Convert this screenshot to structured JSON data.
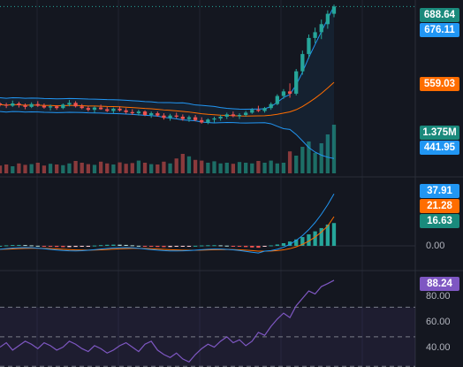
{
  "chart_data": [
    {
      "type": "candlestick",
      "title": "",
      "indicators": [
        "Bollinger Bands",
        "Volume"
      ],
      "price_ylim": [
        400,
        700
      ],
      "last_price": 688.64,
      "last_price_line": "dotted",
      "candles": [
        [
          520,
          522,
          515,
          518
        ],
        [
          518,
          521,
          512,
          516
        ],
        [
          516,
          525,
          514,
          520
        ],
        [
          520,
          523,
          513,
          517
        ],
        [
          517,
          520,
          510,
          514
        ],
        [
          514,
          522,
          512,
          519
        ],
        [
          519,
          524,
          514,
          516
        ],
        [
          516,
          520,
          511,
          513
        ],
        [
          513,
          518,
          508,
          515
        ],
        [
          515,
          517,
          509,
          512
        ],
        [
          512,
          520,
          510,
          518
        ],
        [
          518,
          526,
          515,
          521
        ],
        [
          521,
          524,
          513,
          515
        ],
        [
          515,
          519,
          510,
          512
        ],
        [
          512,
          516,
          506,
          509
        ],
        [
          509,
          515,
          504,
          513
        ],
        [
          513,
          518,
          509,
          510
        ],
        [
          510,
          514,
          505,
          507
        ],
        [
          507,
          513,
          503,
          511
        ],
        [
          511,
          515,
          506,
          508
        ],
        [
          508,
          512,
          502,
          505
        ],
        [
          505,
          510,
          500,
          503
        ],
        [
          503,
          509,
          499,
          506
        ],
        [
          506,
          508,
          498,
          500
        ],
        [
          500,
          506,
          495,
          503
        ],
        [
          503,
          506,
          497,
          499
        ],
        [
          499,
          503,
          492,
          495
        ],
        [
          495,
          502,
          490,
          499
        ],
        [
          499,
          504,
          494,
          497
        ],
        [
          497,
          501,
          490,
          493
        ],
        [
          493,
          499,
          488,
          496
        ],
        [
          496,
          500,
          489,
          491
        ],
        [
          491,
          496,
          485,
          487
        ],
        [
          487,
          494,
          484,
          492
        ],
        [
          492,
          497,
          487,
          494
        ],
        [
          494,
          500,
          490,
          497
        ],
        [
          497,
          504,
          493,
          501
        ],
        [
          501,
          506,
          496,
          498
        ],
        [
          498,
          503,
          493,
          500
        ],
        [
          500,
          507,
          497,
          504
        ],
        [
          504,
          512,
          502,
          509
        ],
        [
          509,
          516,
          505,
          507
        ],
        [
          507,
          514,
          504,
          512
        ],
        [
          512,
          522,
          509,
          519
        ],
        [
          519,
          536,
          517,
          533
        ],
        [
          533,
          545,
          528,
          541
        ],
        [
          541,
          555,
          530,
          537
        ],
        [
          537,
          580,
          534,
          576
        ],
        [
          576,
          612,
          570,
          606
        ],
        [
          606,
          640,
          598,
          634
        ],
        [
          634,
          652,
          625,
          644
        ],
        [
          644,
          666,
          632,
          658
        ],
        [
          658,
          682,
          650,
          676
        ],
        [
          676,
          692,
          670,
          688.64
        ]
      ],
      "bollinger": {
        "upper_level": 676.11,
        "basis_level": 559.03,
        "lower_level": 441.95
      },
      "volume": {
        "last_value": "1.375M",
        "values": [
          0.22,
          0.25,
          0.2,
          0.28,
          0.24,
          0.26,
          0.3,
          0.22,
          0.27,
          0.25,
          0.23,
          0.28,
          0.35,
          0.3,
          0.26,
          0.24,
          0.33,
          0.28,
          0.25,
          0.31,
          0.27,
          0.29,
          0.36,
          0.3,
          0.26,
          0.25,
          0.33,
          0.28,
          0.42,
          0.55,
          0.48,
          0.38,
          0.36,
          0.3,
          0.34,
          0.28,
          0.3,
          0.27,
          0.32,
          0.3,
          0.28,
          0.35,
          0.3,
          0.36,
          0.28,
          0.3,
          0.62,
          0.5,
          0.75,
          0.9,
          0.58,
          0.85,
          1.1,
          1.375
        ]
      }
    },
    {
      "type": "macd",
      "labels": {
        "macd": "37.91",
        "signal": "21.28",
        "histogram": "16.63",
        "zero": "0.00"
      },
      "levels": [
        37.91,
        21.28,
        16.63,
        0.0
      ],
      "tick_labels": [
        "0.00"
      ]
    },
    {
      "type": "rsi",
      "last_value": "88.24",
      "ylim": [
        30,
        90
      ],
      "levels": [
        70,
        50,
        30
      ],
      "tick_labels": [
        "80.00",
        "60.00",
        "40.00"
      ],
      "values": [
        43,
        46,
        41,
        44,
        47,
        45,
        42,
        46,
        44,
        41,
        43,
        47,
        45,
        42,
        40,
        44,
        42,
        39,
        41,
        44,
        46,
        43,
        40,
        45,
        47,
        41,
        38,
        36,
        39,
        35,
        33,
        38,
        42,
        45,
        43,
        47,
        50,
        46,
        48,
        44,
        47,
        53,
        51,
        57,
        62,
        66,
        63,
        71,
        76,
        81,
        79,
        84,
        86,
        88.24
      ]
    }
  ],
  "colors": {
    "background": "#141720",
    "up": "#26a69a",
    "down": "#ef5350",
    "bollinger_band": "#2196f3",
    "bollinger_basis": "#ff6d00",
    "rsi_line": "#7e57c2",
    "macd_line": "#2196f3",
    "signal_line": "#ff6d00"
  }
}
